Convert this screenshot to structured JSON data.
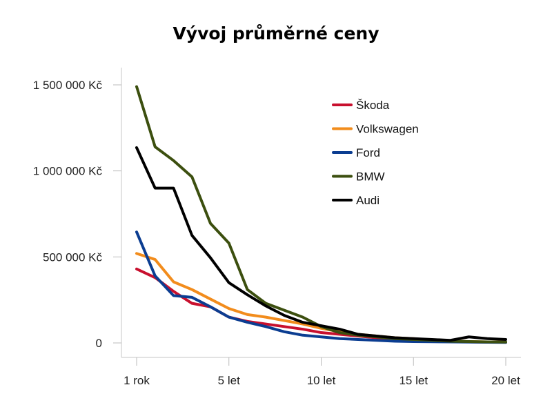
{
  "chart_data": {
    "type": "line",
    "title": "Vývoj průměrné ceny",
    "xlabel": "",
    "ylabel": "",
    "x": [
      1,
      2,
      3,
      4,
      5,
      6,
      7,
      8,
      9,
      10,
      11,
      12,
      13,
      14,
      15,
      16,
      17,
      18,
      19,
      20,
      21
    ],
    "xlim": [
      1,
      21
    ],
    "ylim": [
      0,
      1500000
    ],
    "x_ticks": [
      {
        "x": 1,
        "label": "1 rok"
      },
      {
        "x": 6,
        "label": "5 let"
      },
      {
        "x": 11,
        "label": "10 let"
      },
      {
        "x": 16,
        "label": "15 let"
      },
      {
        "x": 21,
        "label": "20 let"
      }
    ],
    "y_ticks": [
      {
        "y": 0,
        "label": "0"
      },
      {
        "y": 500000,
        "label": "500 000 Kč"
      },
      {
        "y": 1000000,
        "label": "1 000 000 Kč"
      },
      {
        "y": 1500000,
        "label": "1 500 000 Kč"
      }
    ],
    "grid": false,
    "legend_position": "top-right",
    "series": [
      {
        "name": "Škoda",
        "color": "#c8102e",
        "values": [
          430000,
          380000,
          300000,
          230000,
          210000,
          150000,
          125000,
          110000,
          95000,
          80000,
          60000,
          50000,
          40000,
          30000,
          20000,
          15000,
          10000,
          8000,
          6000,
          5000,
          4000
        ]
      },
      {
        "name": "Volkswagen",
        "color": "#f28c1c",
        "values": [
          520000,
          485000,
          355000,
          310000,
          255000,
          200000,
          165000,
          150000,
          130000,
          110000,
          85000,
          65000,
          50000,
          40000,
          30000,
          25000,
          15000,
          10000,
          8000,
          6000,
          5000
        ]
      },
      {
        "name": "Ford",
        "color": "#0b3d91",
        "values": [
          645000,
          390000,
          275000,
          265000,
          210000,
          150000,
          120000,
          95000,
          65000,
          45000,
          35000,
          25000,
          20000,
          15000,
          10000,
          8000,
          7000,
          6000,
          5000,
          4000,
          3000
        ]
      },
      {
        "name": "BMW",
        "color": "#3c4f0f",
        "values": [
          1490000,
          1140000,
          1060000,
          965000,
          695000,
          580000,
          310000,
          230000,
          190000,
          150000,
          95000,
          60000,
          45000,
          35000,
          25000,
          20000,
          15000,
          10000,
          8000,
          6000,
          5000
        ]
      },
      {
        "name": "Audi",
        "color": "#000000",
        "values": [
          1135000,
          900000,
          900000,
          625000,
          495000,
          350000,
          280000,
          215000,
          160000,
          120000,
          100000,
          80000,
          50000,
          40000,
          30000,
          25000,
          20000,
          15000,
          35000,
          25000,
          20000
        ]
      }
    ]
  }
}
